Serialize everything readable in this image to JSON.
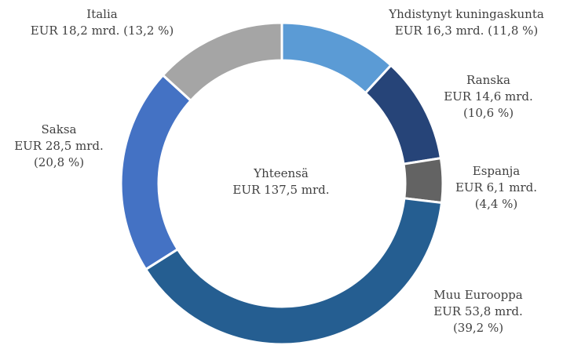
{
  "chart_data": {
    "type": "pie",
    "variant": "donut",
    "total": {
      "label": "Yhteensä",
      "value_text": "EUR 137,5 mrd.",
      "value": 137.5
    },
    "slices": [
      {
        "name": "Yhdistynyt kuningaskunta",
        "value": 16.3,
        "percent": 11.8,
        "value_text": "EUR 16,3 mrd.",
        "percent_text": "(11,8 %)",
        "color": "#5B9BD5"
      },
      {
        "name": "Ranska",
        "value": 14.6,
        "percent": 10.6,
        "value_text": "EUR 14,6 mrd.",
        "percent_text": "(10,6 %)",
        "color": "#264478"
      },
      {
        "name": "Espanja",
        "value": 6.1,
        "percent": 4.4,
        "value_text": "EUR 6,1 mrd.",
        "percent_text": "(4,4 %)",
        "color": "#636363"
      },
      {
        "name": "Muu Eurooppa",
        "value": 53.8,
        "percent": 39.2,
        "value_text": "EUR 53,8 mrd.",
        "percent_text": "(39,2 %)",
        "color": "#255E91"
      },
      {
        "name": "Saksa",
        "value": 28.5,
        "percent": 20.8,
        "value_text": "EUR 28,5 mrd.",
        "percent_text": "(20,8 %)",
        "color": "#4472C4"
      },
      {
        "name": "Italia",
        "value": 18.2,
        "percent": 13.2,
        "value_text": "EUR 18,2 mrd.",
        "percent_text": "(13,2 %)",
        "color": "#A5A5A5"
      }
    ]
  }
}
